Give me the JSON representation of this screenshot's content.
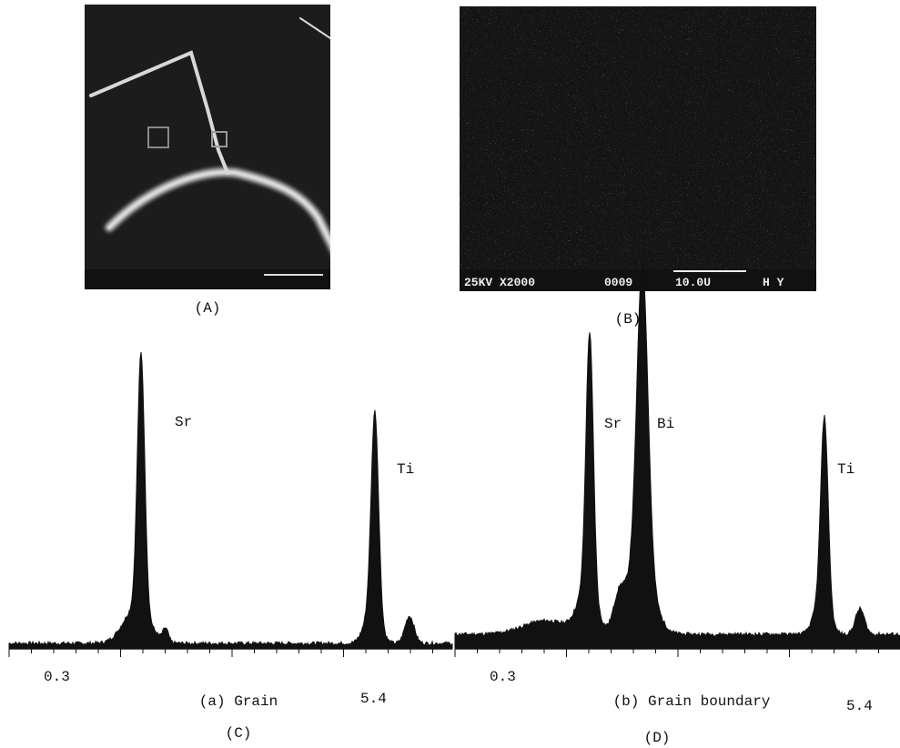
{
  "figure": {
    "micrographs": [
      {
        "label": "(A)"
      },
      {
        "label": "(B)",
        "info_bar": [
          "25KV X2000",
          "0009",
          "10.0U",
          "H Y"
        ]
      }
    ],
    "spectra": [
      {
        "peaks": [
          "Sr",
          "Ti"
        ],
        "axis_labels": [
          "0.3",
          "5.4"
        ],
        "caption": "(a) Grain",
        "label": "(C)"
      },
      {
        "peaks": [
          "Sr",
          "Bi",
          "Ti"
        ],
        "axis_labels": [
          "0.3",
          "5.4"
        ],
        "caption": "(b) Grain boundary",
        "label": "(D)"
      }
    ]
  }
}
